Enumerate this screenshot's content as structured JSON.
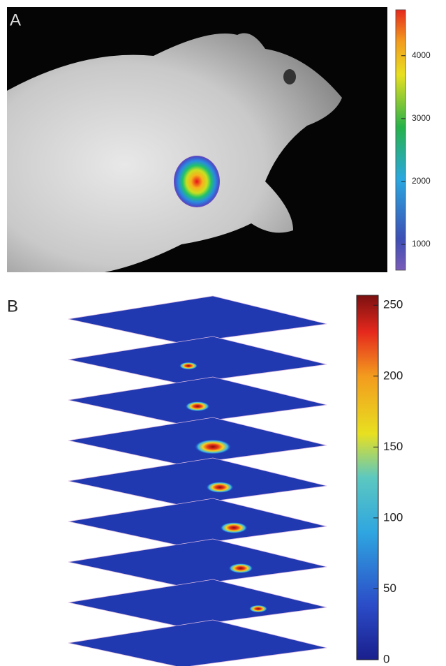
{
  "panels": [
    {
      "label": "A",
      "colorbar": {
        "lim": [
          590,
          4730
        ],
        "ticks": [
          1000,
          2000,
          3000,
          4000
        ]
      }
    },
    {
      "label": "B",
      "colorbar": {
        "lim": [
          0,
          257
        ],
        "ticks": [
          0,
          50,
          100,
          150,
          200,
          250
        ]
      }
    }
  ]
}
